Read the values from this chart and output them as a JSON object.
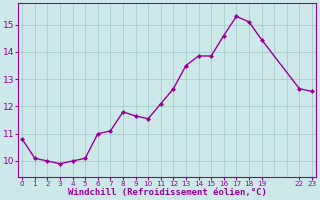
{
  "x": [
    0,
    1,
    2,
    3,
    4,
    5,
    6,
    7,
    8,
    9,
    10,
    11,
    12,
    13,
    14,
    15,
    16,
    17,
    18,
    19,
    22,
    23
  ],
  "y": [
    10.8,
    10.1,
    10.0,
    9.9,
    10.0,
    10.1,
    11.0,
    11.1,
    11.8,
    11.65,
    11.55,
    12.1,
    12.65,
    13.5,
    13.85,
    13.85,
    14.6,
    15.3,
    15.1,
    14.45,
    12.65,
    12.55
  ],
  "line_color": "#990099",
  "marker": "D",
  "marker_size": 2.0,
  "bg_color": "#cce8e8",
  "grid_color": "#aacccc",
  "xlabel": "Windchill (Refroidissement éolien,°C)",
  "xlabel_color": "#990099",
  "tick_color": "#990099",
  "ylim": [
    9.4,
    15.8
  ],
  "yticks": [
    10,
    11,
    12,
    13,
    14,
    15
  ],
  "xlim": [
    -0.3,
    23.3
  ],
  "line_width": 1.0
}
